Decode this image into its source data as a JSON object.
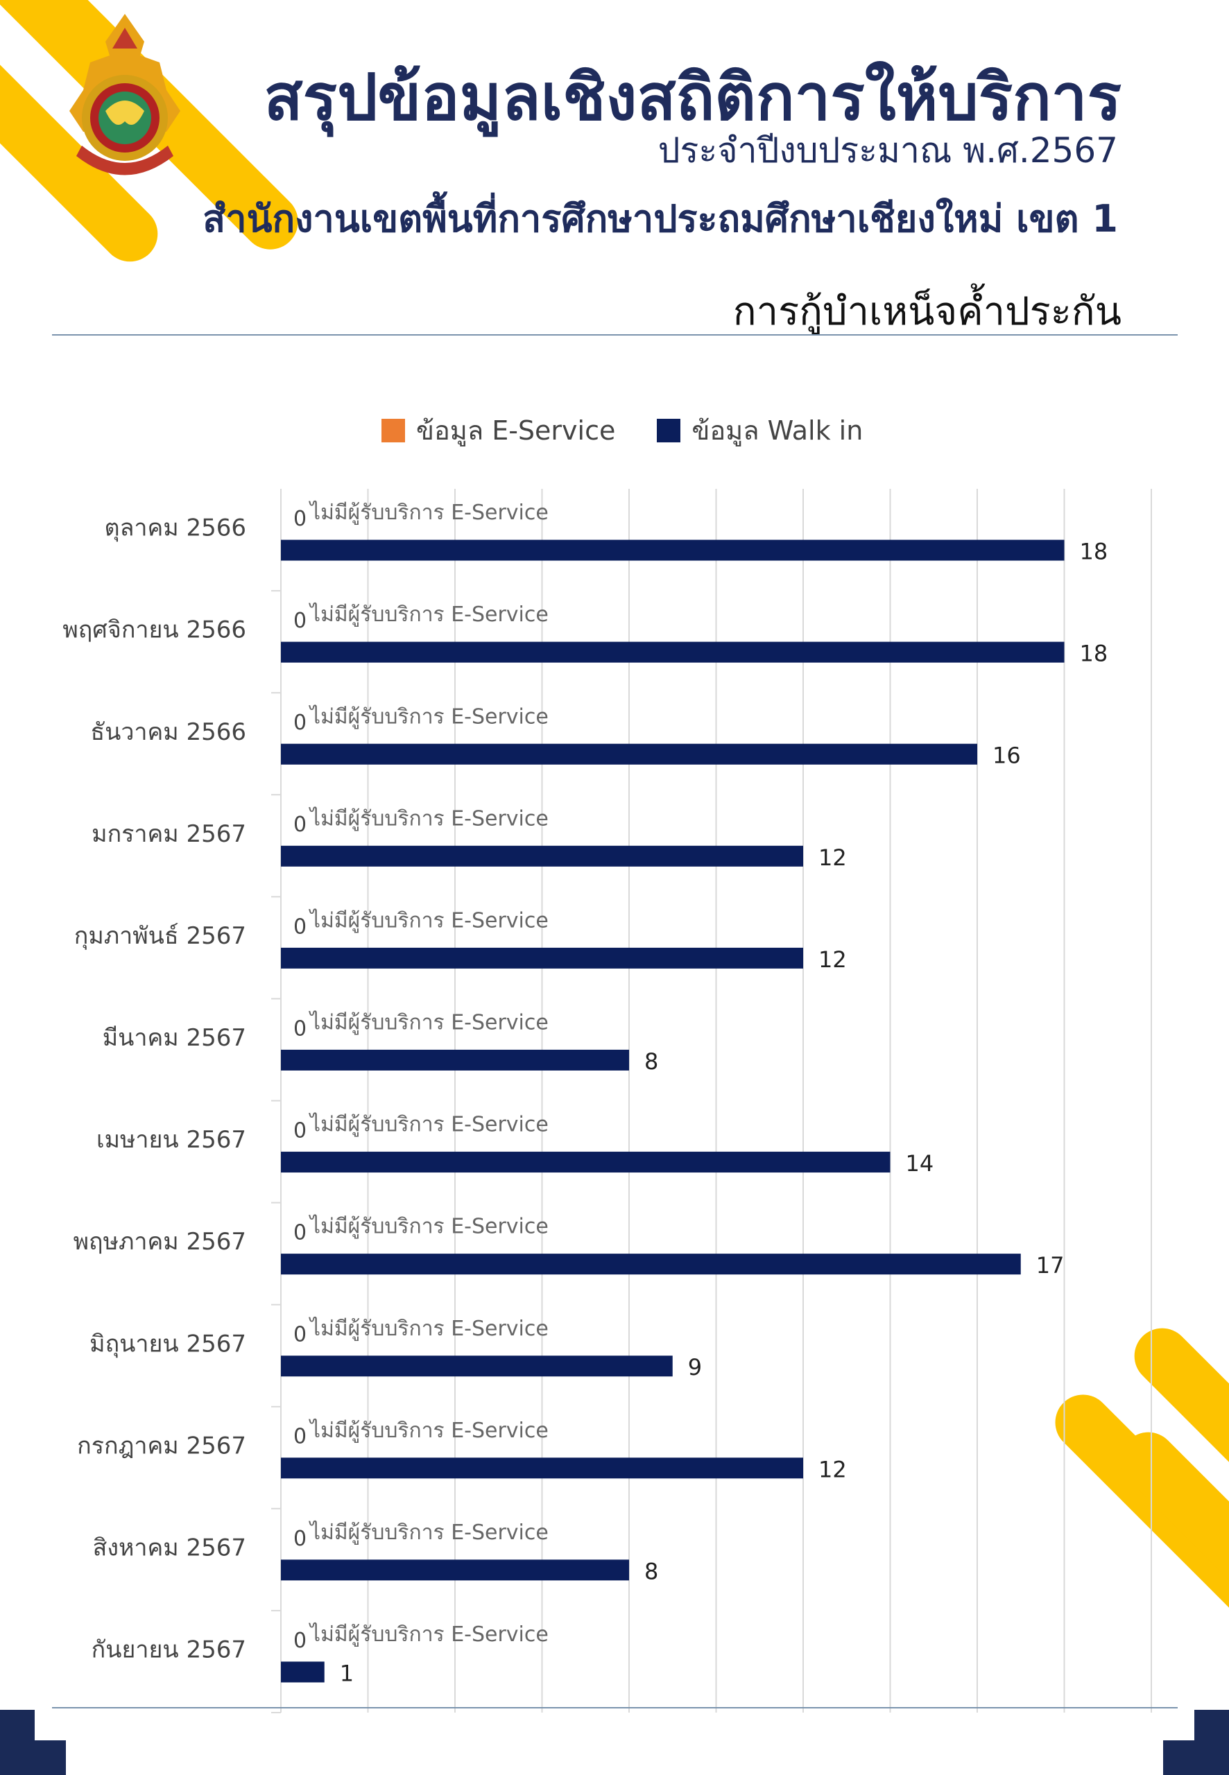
{
  "header": {
    "title": "สรุปข้อมูลเชิงสถิติการให้บริการ",
    "subtitle_year": "ประจำปีงบประมาณ พ.ศ.2567",
    "subtitle_office": "สำนักงานเขตพื้นที่การศึกษาประถมศึกษาเชียงใหม่ เขต 1",
    "section_title": "การกู้บำเหน็จค้ำประกัน"
  },
  "colors": {
    "accent_yellow": "#FDC300",
    "navy": "#0B1E5B",
    "orange": "#ED7D31",
    "title_navy": "#1f2c5c"
  },
  "chart_data": {
    "type": "bar",
    "orientation": "horizontal",
    "categories": [
      "ตุลาคม 2566",
      "พฤศจิกายน 2566",
      "ธันวาคม 2566",
      "มกราคม 2567",
      "กุมภาพันธ์ 2567",
      "มีนาคม 2567",
      "เมษายน 2567",
      "พฤษภาคม 2567",
      "มิถุนายน 2567",
      "กรกฎาคม 2567",
      "สิงหาคม 2567",
      "กันยายน 2567"
    ],
    "series": [
      {
        "name": "ข้อมูล E-Service",
        "color": "#ED7D31",
        "values": [
          0,
          0,
          0,
          0,
          0,
          0,
          0,
          0,
          0,
          0,
          0,
          0
        ],
        "note": "ไม่มีผู้รับบริการ E-Service"
      },
      {
        "name": "ข้อมูล Walk in",
        "color": "#0B1E5B",
        "values": [
          18,
          18,
          16,
          12,
          12,
          8,
          14,
          17,
          9,
          12,
          8,
          1
        ]
      }
    ],
    "xlim": [
      0,
      20
    ],
    "grid": true,
    "legend_position": "top"
  }
}
